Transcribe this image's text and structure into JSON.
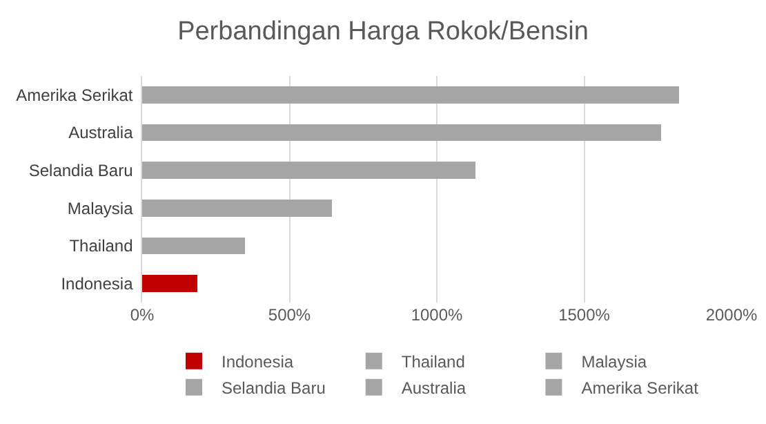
{
  "chart_data": {
    "type": "bar",
    "orientation": "horizontal",
    "stacked": true,
    "title": "Perbandingan Harga Rokok/Bensin",
    "categories": [
      "Amerika Serikat",
      "Australia",
      "Selandia Baru",
      "Malaysia",
      "Thailand",
      "Indonesia"
    ],
    "series": [
      {
        "name": "Indonesia",
        "color": "#c00000",
        "values": [
          null,
          null,
          null,
          null,
          null,
          188
        ]
      },
      {
        "name": "Thailand",
        "color": "#a5a5a5",
        "values": [
          null,
          null,
          null,
          null,
          349,
          null
        ]
      },
      {
        "name": "Malaysia",
        "color": "#a5a5a5",
        "values": [
          null,
          null,
          null,
          644,
          null,
          null
        ]
      },
      {
        "name": "Selandia Baru",
        "color": "#a5a5a5",
        "values": [
          null,
          null,
          1130,
          null,
          null,
          null
        ]
      },
      {
        "name": "Australia",
        "color": "#a5a5a5",
        "values": [
          null,
          1760,
          null,
          null,
          null,
          null
        ]
      },
      {
        "name": "Amerika Serikat",
        "color": "#a5a5a5",
        "values": [
          1821,
          null,
          null,
          null,
          null,
          null
        ]
      }
    ],
    "xlim": [
      0,
      2000
    ],
    "xticks": [
      {
        "value": 0,
        "label": "0%"
      },
      {
        "value": 500,
        "label": "500%"
      },
      {
        "value": 1000,
        "label": "1000%"
      },
      {
        "value": 1500,
        "label": "1500%"
      },
      {
        "value": 2000,
        "label": "2000%"
      }
    ],
    "grid": "x",
    "legend": "bottom"
  }
}
